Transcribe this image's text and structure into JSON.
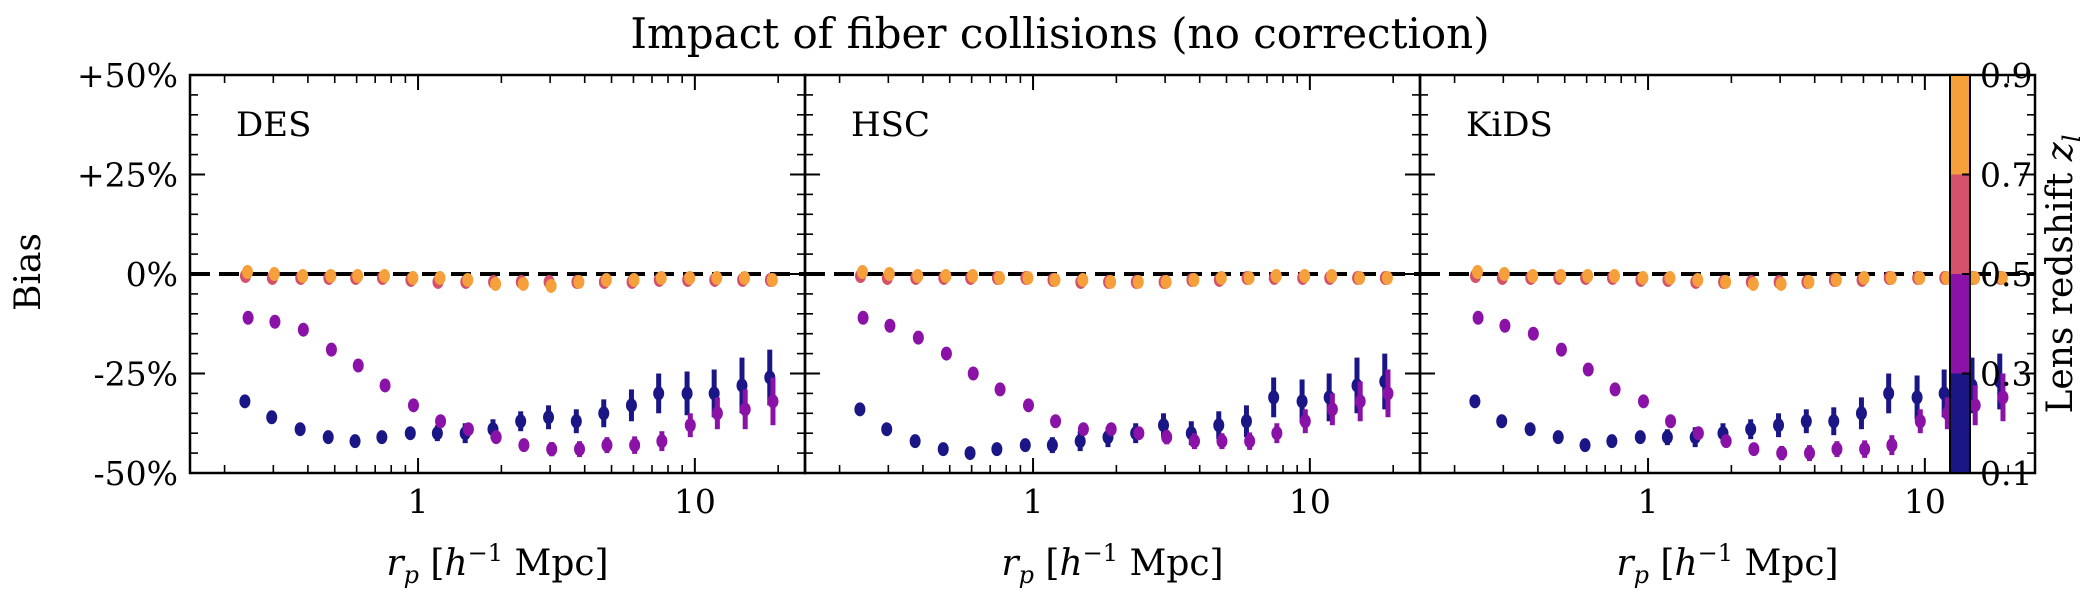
{
  "chart_data": {
    "type": "scatter",
    "title": "Impact of fiber collisions (no correction)",
    "ylabel": "Bias",
    "xlabel": "r_p [h^-1 Mpc]",
    "xscale": "log",
    "xlim": [
      0.15,
      25
    ],
    "ylim": [
      -0.5,
      0.5
    ],
    "yticks": [
      0.5,
      0.25,
      0.0,
      -0.25,
      -0.5
    ],
    "ytick_labels": [
      "+50%",
      "+25%",
      "0%",
      "-25%",
      "-50%"
    ],
    "xticks": [
      1,
      10
    ],
    "xtick_labels": [
      "1",
      "10"
    ],
    "reference_line": {
      "y": 0.0,
      "style": "dashed",
      "color": "#000000"
    },
    "colorbar": {
      "label": "Lens redshift z_l",
      "ticks": [
        0.1,
        0.3,
        0.5,
        0.7,
        0.9
      ],
      "tick_labels": [
        "0.1",
        "0.3",
        "0.5",
        "0.7",
        "0.9"
      ],
      "bins": [
        {
          "range": [
            0.1,
            0.3
          ],
          "color": "#1b1686"
        },
        {
          "range": [
            0.3,
            0.5
          ],
          "color": "#8a12a6"
        },
        {
          "range": [
            0.5,
            0.7
          ],
          "color": "#d4516b"
        },
        {
          "range": [
            0.7,
            0.9
          ],
          "color": "#f5a03a"
        }
      ]
    },
    "x": [
      0.24,
      0.3,
      0.38,
      0.48,
      0.6,
      0.75,
      0.95,
      1.19,
      1.5,
      1.89,
      2.38,
      3.0,
      3.78,
      4.75,
      5.98,
      7.5,
      9.5,
      11.9,
      15.0,
      18.9
    ],
    "panels": [
      {
        "label": "DES",
        "series": [
          {
            "bin": "0.1-0.3",
            "color": "#1b1686",
            "y": [
              -0.32,
              -0.36,
              -0.39,
              -0.41,
              -0.42,
              -0.41,
              -0.4,
              -0.4,
              -0.4,
              -0.39,
              -0.37,
              -0.36,
              -0.37,
              -0.35,
              -0.33,
              -0.3,
              -0.3,
              -0.3,
              -0.28,
              -0.26
            ],
            "err": [
              0.01,
              0.01,
              0.015,
              0.015,
              0.015,
              0.015,
              0.015,
              0.02,
              0.025,
              0.025,
              0.025,
              0.03,
              0.03,
              0.035,
              0.04,
              0.05,
              0.055,
              0.06,
              0.07,
              0.07
            ]
          },
          {
            "bin": "0.3-0.5",
            "color": "#8a12a6",
            "y": [
              -0.11,
              -0.12,
              -0.14,
              -0.19,
              -0.23,
              -0.28,
              -0.33,
              -0.37,
              -0.39,
              -0.41,
              -0.43,
              -0.44,
              -0.44,
              -0.43,
              -0.43,
              -0.42,
              -0.38,
              -0.35,
              -0.34,
              -0.32
            ],
            "err": [
              0.005,
              0.006,
              0.007,
              0.008,
              0.008,
              0.008,
              0.009,
              0.01,
              0.012,
              0.014,
              0.015,
              0.018,
              0.02,
              0.02,
              0.022,
              0.025,
              0.03,
              0.04,
              0.05,
              0.06
            ]
          },
          {
            "bin": "0.5-0.7",
            "color": "#d4516b",
            "y": [
              -0.005,
              -0.01,
              -0.01,
              -0.01,
              -0.01,
              -0.01,
              -0.015,
              -0.02,
              -0.02,
              -0.02,
              -0.02,
              -0.02,
              -0.02,
              -0.02,
              -0.02,
              -0.015,
              -0.015,
              -0.015,
              -0.015,
              -0.015
            ],
            "err": [
              0.003,
              0.003,
              0.003,
              0.003,
              0.003,
              0.003,
              0.003,
              0.004,
              0.004,
              0.004,
              0.004,
              0.004,
              0.004,
              0.004,
              0.004,
              0.004,
              0.004,
              0.004,
              0.004,
              0.004
            ]
          },
          {
            "bin": "0.7-0.9",
            "color": "#f5a03a",
            "y": [
              0.005,
              0.0,
              -0.005,
              -0.005,
              -0.005,
              -0.005,
              -0.01,
              -0.01,
              -0.015,
              -0.025,
              -0.025,
              -0.03,
              -0.02,
              -0.015,
              -0.015,
              -0.01,
              -0.01,
              -0.01,
              -0.01,
              -0.015
            ],
            "err": [
              0.003,
              0.003,
              0.003,
              0.003,
              0.003,
              0.003,
              0.003,
              0.004,
              0.004,
              0.004,
              0.004,
              0.004,
              0.004,
              0.004,
              0.004,
              0.004,
              0.004,
              0.004,
              0.004,
              0.004
            ]
          }
        ]
      },
      {
        "label": "HSC",
        "series": [
          {
            "bin": "0.1-0.3",
            "color": "#1b1686",
            "y": [
              -0.34,
              -0.39,
              -0.42,
              -0.44,
              -0.45,
              -0.44,
              -0.43,
              -0.43,
              -0.42,
              -0.41,
              -0.4,
              -0.38,
              -0.4,
              -0.38,
              -0.37,
              -0.31,
              -0.32,
              -0.31,
              -0.28,
              -0.27
            ],
            "err": [
              0.01,
              0.01,
              0.015,
              0.015,
              0.015,
              0.015,
              0.015,
              0.02,
              0.025,
              0.025,
              0.025,
              0.03,
              0.03,
              0.035,
              0.04,
              0.05,
              0.055,
              0.06,
              0.07,
              0.07
            ]
          },
          {
            "bin": "0.3-0.5",
            "color": "#8a12a6",
            "y": [
              -0.11,
              -0.13,
              -0.16,
              -0.2,
              -0.25,
              -0.29,
              -0.33,
              -0.37,
              -0.39,
              -0.39,
              -0.4,
              -0.41,
              -0.42,
              -0.42,
              -0.42,
              -0.4,
              -0.37,
              -0.34,
              -0.32,
              -0.3
            ],
            "err": [
              0.005,
              0.006,
              0.007,
              0.008,
              0.008,
              0.008,
              0.009,
              0.01,
              0.012,
              0.014,
              0.015,
              0.018,
              0.02,
              0.02,
              0.022,
              0.025,
              0.03,
              0.04,
              0.05,
              0.06
            ]
          },
          {
            "bin": "0.5-0.7",
            "color": "#d4516b",
            "y": [
              -0.005,
              -0.01,
              -0.01,
              -0.01,
              -0.01,
              -0.01,
              -0.01,
              -0.015,
              -0.02,
              -0.02,
              -0.02,
              -0.02,
              -0.015,
              -0.015,
              -0.01,
              -0.01,
              -0.01,
              -0.01,
              -0.01,
              -0.01
            ],
            "err": [
              0.003,
              0.003,
              0.003,
              0.003,
              0.003,
              0.003,
              0.003,
              0.004,
              0.004,
              0.004,
              0.004,
              0.004,
              0.004,
              0.004,
              0.004,
              0.004,
              0.004,
              0.004,
              0.004,
              0.004
            ]
          },
          {
            "bin": "0.7-0.9",
            "color": "#f5a03a",
            "y": [
              0.005,
              0.0,
              -0.005,
              -0.005,
              -0.005,
              -0.01,
              -0.01,
              -0.015,
              -0.015,
              -0.02,
              -0.02,
              -0.02,
              -0.015,
              -0.01,
              -0.01,
              -0.005,
              -0.005,
              -0.005,
              -0.01,
              -0.01
            ],
            "err": [
              0.003,
              0.003,
              0.003,
              0.003,
              0.003,
              0.003,
              0.003,
              0.004,
              0.004,
              0.004,
              0.004,
              0.004,
              0.004,
              0.004,
              0.004,
              0.004,
              0.004,
              0.004,
              0.004,
              0.004
            ]
          }
        ]
      },
      {
        "label": "KiDS",
        "series": [
          {
            "bin": "0.1-0.3",
            "color": "#1b1686",
            "y": [
              -0.32,
              -0.37,
              -0.39,
              -0.41,
              -0.43,
              -0.42,
              -0.41,
              -0.41,
              -0.41,
              -0.4,
              -0.39,
              -0.38,
              -0.37,
              -0.37,
              -0.35,
              -0.3,
              -0.31,
              -0.3,
              -0.28,
              -0.27
            ],
            "err": [
              0.01,
              0.01,
              0.015,
              0.015,
              0.015,
              0.015,
              0.015,
              0.02,
              0.025,
              0.025,
              0.025,
              0.03,
              0.03,
              0.035,
              0.04,
              0.05,
              0.055,
              0.06,
              0.07,
              0.07
            ]
          },
          {
            "bin": "0.3-0.5",
            "color": "#8a12a6",
            "y": [
              -0.11,
              -0.13,
              -0.15,
              -0.19,
              -0.24,
              -0.29,
              -0.32,
              -0.37,
              -0.4,
              -0.42,
              -0.44,
              -0.45,
              -0.45,
              -0.44,
              -0.44,
              -0.43,
              -0.37,
              -0.35,
              -0.33,
              -0.31
            ],
            "err": [
              0.005,
              0.006,
              0.007,
              0.008,
              0.008,
              0.008,
              0.009,
              0.01,
              0.012,
              0.014,
              0.015,
              0.018,
              0.02,
              0.02,
              0.022,
              0.025,
              0.03,
              0.04,
              0.05,
              0.06
            ]
          },
          {
            "bin": "0.5-0.7",
            "color": "#d4516b",
            "y": [
              -0.005,
              -0.01,
              -0.01,
              -0.01,
              -0.01,
              -0.01,
              -0.015,
              -0.015,
              -0.02,
              -0.02,
              -0.02,
              -0.02,
              -0.02,
              -0.015,
              -0.015,
              -0.01,
              -0.01,
              -0.01,
              -0.01,
              -0.01
            ],
            "err": [
              0.003,
              0.003,
              0.003,
              0.003,
              0.003,
              0.003,
              0.003,
              0.004,
              0.004,
              0.004,
              0.004,
              0.004,
              0.004,
              0.004,
              0.004,
              0.004,
              0.004,
              0.004,
              0.004,
              0.004
            ]
          },
          {
            "bin": "0.7-0.9",
            "color": "#f5a03a",
            "y": [
              0.005,
              0.0,
              -0.005,
              -0.005,
              -0.005,
              -0.005,
              -0.01,
              -0.01,
              -0.015,
              -0.02,
              -0.025,
              -0.025,
              -0.02,
              -0.015,
              -0.01,
              -0.01,
              -0.01,
              -0.01,
              -0.01,
              -0.01
            ],
            "err": [
              0.003,
              0.003,
              0.003,
              0.003,
              0.003,
              0.003,
              0.003,
              0.004,
              0.004,
              0.004,
              0.004,
              0.004,
              0.004,
              0.004,
              0.004,
              0.004,
              0.004,
              0.004,
              0.004,
              0.004
            ]
          }
        ]
      }
    ]
  }
}
